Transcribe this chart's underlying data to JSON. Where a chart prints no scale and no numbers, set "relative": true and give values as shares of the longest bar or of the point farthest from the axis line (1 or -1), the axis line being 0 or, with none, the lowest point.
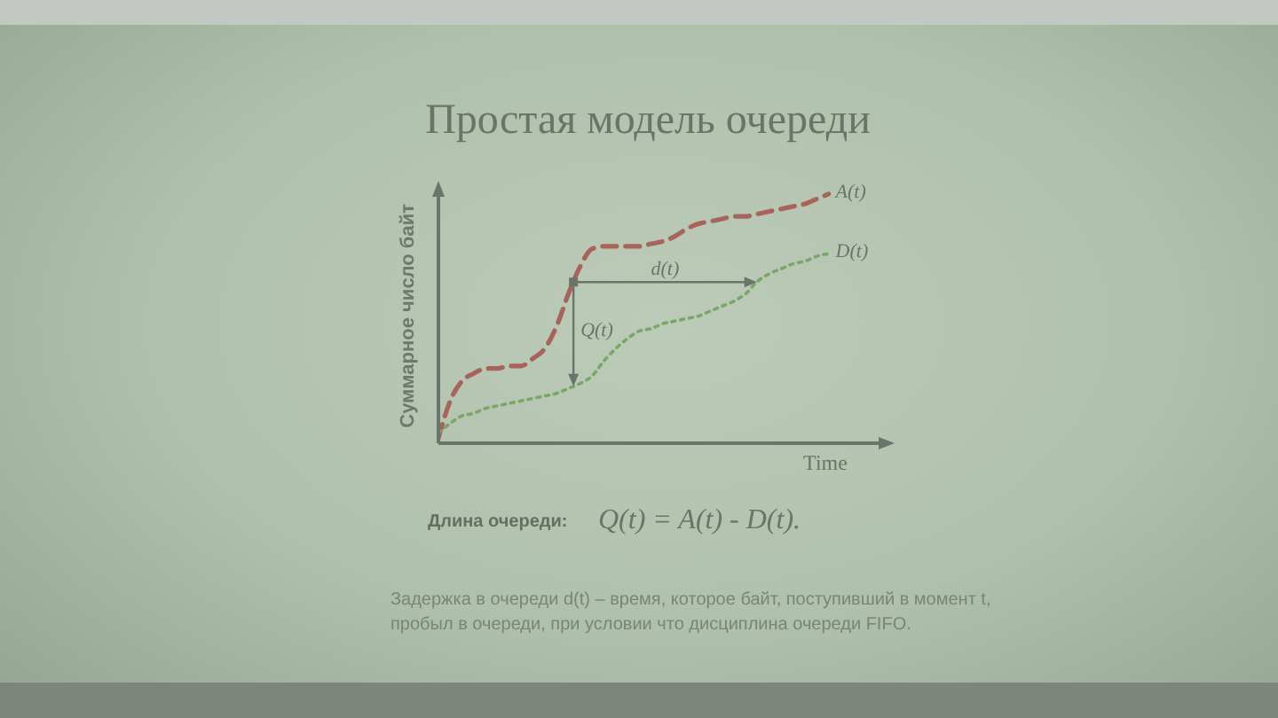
{
  "chart_data": {
    "type": "line",
    "title": "Простая модель очереди",
    "xlabel": "Time",
    "ylabel": "Суммарное число байт",
    "relative": true,
    "marker": "none",
    "categories": [
      null,
      null,
      null,
      null,
      null,
      null,
      null,
      null,
      null,
      null,
      null,
      null,
      null,
      null,
      null,
      null,
      null,
      null,
      null,
      null,
      null,
      null,
      null,
      null,
      null,
      null,
      null,
      null,
      null,
      null,
      null,
      null,
      null,
      null
    ],
    "series": [
      {
        "name": "A(t)",
        "color": "#a8645a",
        "line_style": "dashed",
        "values": [
          0.02,
          0.17,
          0.25,
          0.28,
          0.3,
          0.3,
          0.31,
          0.31,
          0.34,
          0.38,
          0.47,
          0.6,
          0.71,
          0.78,
          0.79,
          0.79,
          0.79,
          0.79,
          0.8,
          0.81,
          0.83,
          0.86,
          0.88,
          0.89,
          0.9,
          0.91,
          0.91,
          0.92,
          0.93,
          0.94,
          0.95,
          0.96,
          0.98,
          1
        ]
      },
      {
        "name": "D(t)",
        "color": "#78a866",
        "line_style": "dotted",
        "values": [
          0.04,
          0.08,
          0.11,
          0.12,
          0.14,
          0.15,
          0.16,
          0.17,
          0.18,
          0.19,
          0.2,
          0.22,
          0.24,
          0.27,
          0.33,
          0.38,
          0.42,
          0.45,
          0.46,
          0.48,
          0.49,
          0.5,
          0.51,
          0.53,
          0.55,
          0.57,
          0.6,
          0.65,
          0.68,
          0.7,
          0.72,
          0.73,
          0.75,
          0.76
        ]
      }
    ],
    "annotations": [
      "d(t)",
      "Q(t)",
      "Длина очереди:",
      "Q(t) = A(t) - D(t).",
      "Задержка в очереди d(t) – время, которое байт, поступивший в момент t, пробыл в очереди, при условии что дисциплина очереди FIFO."
    ]
  }
}
